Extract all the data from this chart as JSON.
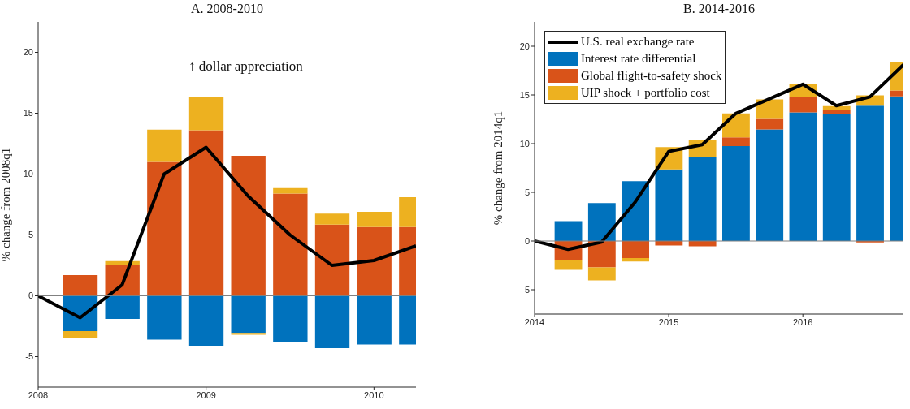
{
  "chart_data": [
    {
      "type": "bar",
      "title": "A. 2008-2010",
      "ylabel": "% change from 2008q1",
      "stacked": true,
      "legend": false,
      "x": [
        2008,
        2008.25,
        2008.5,
        2008.75,
        2009,
        2009.25,
        2009.5,
        2009.75,
        2010,
        2010.25
      ],
      "series": [
        {
          "type": "line",
          "color": "#000000",
          "values": [
            0,
            -1.8,
            0.9,
            10.0,
            12.2,
            8.2,
            5.0,
            2.5,
            2.9,
            4.1
          ]
        },
        {
          "color": "#0072bd",
          "values": [
            0,
            -2.9,
            -1.9,
            -3.6,
            -4.1,
            -3.05,
            -3.8,
            -4.3,
            -4.0,
            -4.0
          ]
        },
        {
          "color": "#d95319",
          "values": [
            0,
            1.7,
            2.5,
            11.0,
            13.6,
            11.5,
            8.4,
            5.85,
            5.65,
            5.65
          ]
        },
        {
          "color": "#edb120",
          "values": [
            0,
            -0.6,
            0.35,
            2.65,
            2.75,
            -0.15,
            0.45,
            0.9,
            1.25,
            2.45
          ]
        }
      ],
      "xlim": [
        2008,
        2010.25
      ],
      "xticks": [
        2008,
        2009,
        2010
      ],
      "ylim": [
        -7.5,
        22.5
      ],
      "yticks": [
        -5,
        0,
        5,
        10,
        15,
        20
      ],
      "ref_lines": [
        {
          "axis": "y",
          "value": 0,
          "color": "#808080"
        }
      ],
      "annotations": [
        "↑ dollar appreciation"
      ]
    },
    {
      "type": "bar",
      "title": "B. 2014-2016",
      "ylabel": "% change from 2014q1",
      "stacked": true,
      "legend": "top left",
      "x": [
        2014,
        2014.25,
        2014.5,
        2014.75,
        2015,
        2015.25,
        2015.5,
        2015.75,
        2016,
        2016.25,
        2016.5,
        2016.75
      ],
      "series": [
        {
          "type": "line",
          "name": "U.S. real exchange rate",
          "color": "#000000",
          "values": [
            0,
            -0.85,
            -0.1,
            4.0,
            9.2,
            9.9,
            13.1,
            14.6,
            16.1,
            13.9,
            14.8,
            18.1
          ]
        },
        {
          "name": "Interest rate differential",
          "color": "#0072bd",
          "values": [
            0,
            2.05,
            3.9,
            6.15,
            7.35,
            8.6,
            9.75,
            11.45,
            13.2,
            13.0,
            13.9,
            14.85
          ]
        },
        {
          "name": "Global flight-to-safety shock",
          "color": "#d95319",
          "values": [
            0,
            -2.0,
            -2.7,
            -1.75,
            -0.45,
            -0.55,
            0.9,
            1.1,
            1.55,
            0.45,
            -0.15,
            0.6
          ]
        },
        {
          "name": "UIP shock + portfolio cost",
          "color": "#edb120",
          "values": [
            0,
            -0.95,
            -1.35,
            -0.35,
            2.3,
            1.8,
            2.45,
            2.0,
            1.35,
            0.4,
            1.05,
            2.9
          ]
        }
      ],
      "xlim": [
        2014,
        2016.75
      ],
      "xticks": [
        2014,
        2015,
        2016
      ],
      "ylim": [
        -7.5,
        22.5
      ],
      "yticks": [
        -5,
        0,
        5,
        10,
        15,
        20
      ],
      "ref_lines": [
        {
          "axis": "y",
          "value": 0,
          "color": "#808080"
        }
      ]
    }
  ]
}
